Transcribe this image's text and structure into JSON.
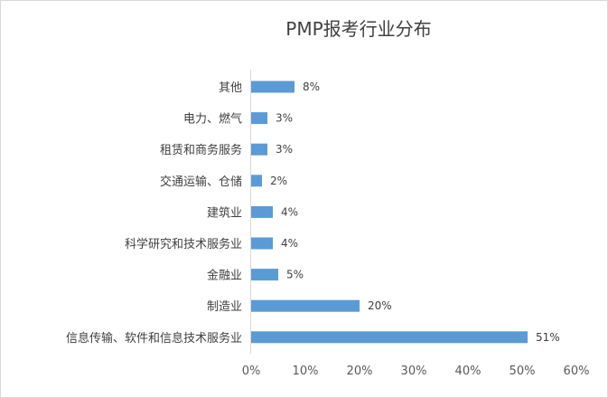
{
  "chart_data": {
    "type": "bar",
    "orientation": "horizontal",
    "title": "PMP报考行业分布",
    "categories": [
      "其他",
      "电力、燃气",
      "租赁和商务服务",
      "交通运输、仓储",
      "建筑业",
      "科学研究和技术服务业",
      "金融业",
      "制造业",
      "信息传输、软件和信息技术服务业"
    ],
    "values": [
      8,
      3,
      3,
      2,
      4,
      4,
      5,
      20,
      51
    ],
    "data_labels": [
      "8%",
      "3%",
      "3%",
      "2%",
      "4%",
      "4%",
      "5%",
      "20%",
      "51%"
    ],
    "xlim": [
      0,
      60
    ],
    "x_ticks": [
      0,
      10,
      20,
      30,
      40,
      50,
      60
    ],
    "x_tick_labels": [
      "0%",
      "10%",
      "20%",
      "30%",
      "40%",
      "50%",
      "60%"
    ],
    "grid": false,
    "legend": "none",
    "bar_color": "#5b9bd5"
  }
}
